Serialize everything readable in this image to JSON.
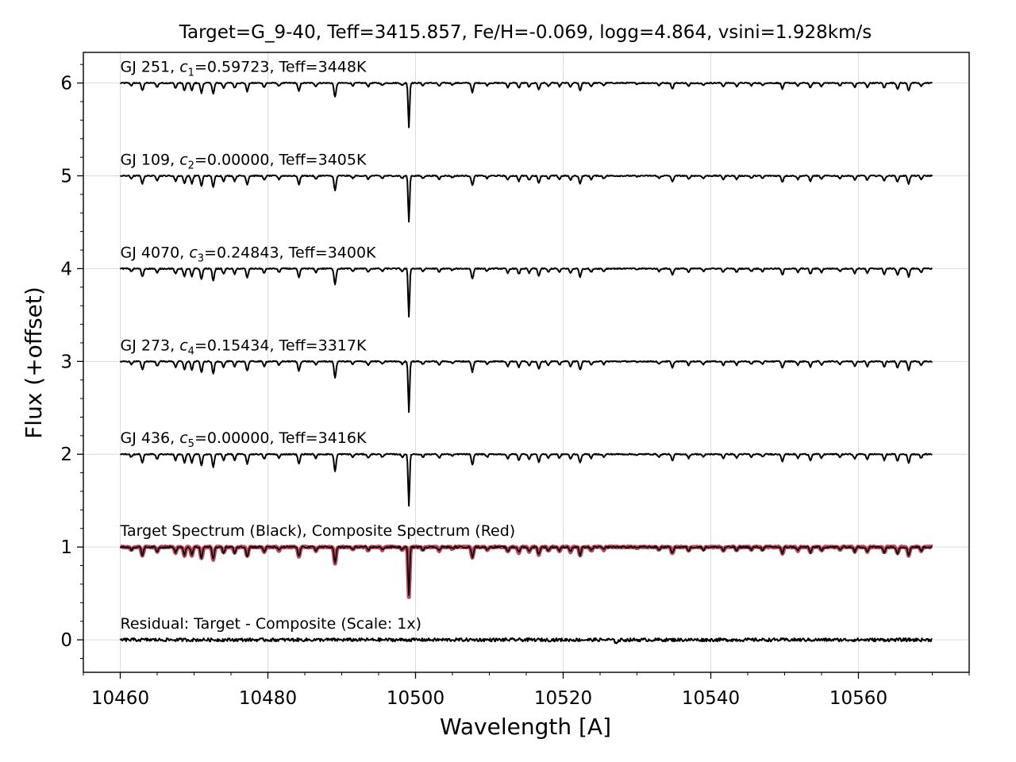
{
  "chart_data": {
    "type": "line",
    "title": "Target=G_9-40, Teff=3415.857, Fe/H=-0.069, logg=4.864, vsini=1.928km/s",
    "xlabel": "Wavelength [A]",
    "ylabel": "Flux (+offset)",
    "xlim": [
      10455,
      10575
    ],
    "ylim": [
      -0.35,
      6.33
    ],
    "xticks": [
      10460,
      10480,
      10500,
      10520,
      10540,
      10560
    ],
    "xtick_labels": [
      "10460",
      "10480",
      "10500",
      "10520",
      "10540",
      "10560"
    ],
    "yticks": [
      0,
      1,
      2,
      3,
      4,
      5,
      6
    ],
    "ytick_labels": [
      "0",
      "1",
      "2",
      "3",
      "4",
      "5",
      "6"
    ],
    "grid": true,
    "x_range_data": [
      10460,
      10570
    ],
    "absorption_lines": [
      {
        "w": 10461.5,
        "d": 0.03
      },
      {
        "w": 10463.0,
        "d": 0.09
      },
      {
        "w": 10465.0,
        "d": 0.05
      },
      {
        "w": 10467.5,
        "d": 0.06
      },
      {
        "w": 10468.7,
        "d": 0.09
      },
      {
        "w": 10469.7,
        "d": 0.09
      },
      {
        "w": 10471.0,
        "d": 0.12
      },
      {
        "w": 10472.6,
        "d": 0.13
      },
      {
        "w": 10474.0,
        "d": 0.06
      },
      {
        "w": 10475.5,
        "d": 0.06
      },
      {
        "w": 10477.2,
        "d": 0.1
      },
      {
        "w": 10479.5,
        "d": 0.05
      },
      {
        "w": 10481.5,
        "d": 0.04
      },
      {
        "w": 10484.2,
        "d": 0.1
      },
      {
        "w": 10486.5,
        "d": 0.04
      },
      {
        "w": 10489.1,
        "d": 0.17
      },
      {
        "w": 10491.5,
        "d": 0.03
      },
      {
        "w": 10493.6,
        "d": 0.04
      },
      {
        "w": 10495.5,
        "d": 0.03
      },
      {
        "w": 10498.2,
        "d": 0.03
      },
      {
        "w": 10499.1,
        "d": 0.53
      },
      {
        "w": 10501.0,
        "d": 0.03
      },
      {
        "w": 10503.2,
        "d": 0.04
      },
      {
        "w": 10505.0,
        "d": 0.02
      },
      {
        "w": 10507.7,
        "d": 0.11
      },
      {
        "w": 10509.7,
        "d": 0.03
      },
      {
        "w": 10512.5,
        "d": 0.05
      },
      {
        "w": 10514.0,
        "d": 0.06
      },
      {
        "w": 10515.4,
        "d": 0.05
      },
      {
        "w": 10516.7,
        "d": 0.08
      },
      {
        "w": 10518.0,
        "d": 0.04
      },
      {
        "w": 10519.5,
        "d": 0.04
      },
      {
        "w": 10521.0,
        "d": 0.05
      },
      {
        "w": 10522.3,
        "d": 0.09
      },
      {
        "w": 10523.8,
        "d": 0.04
      },
      {
        "w": 10525.5,
        "d": 0.03
      },
      {
        "w": 10530.0,
        "d": 0.01
      },
      {
        "w": 10533.0,
        "d": 0.03
      },
      {
        "w": 10534.8,
        "d": 0.07
      },
      {
        "w": 10537.0,
        "d": 0.04
      },
      {
        "w": 10539.0,
        "d": 0.03
      },
      {
        "w": 10541.7,
        "d": 0.04
      },
      {
        "w": 10543.5,
        "d": 0.04
      },
      {
        "w": 10545.5,
        "d": 0.03
      },
      {
        "w": 10547.0,
        "d": 0.03
      },
      {
        "w": 10549.7,
        "d": 0.07
      },
      {
        "w": 10551.8,
        "d": 0.04
      },
      {
        "w": 10553.5,
        "d": 0.06
      },
      {
        "w": 10555.0,
        "d": 0.04
      },
      {
        "w": 10557.5,
        "d": 0.03
      },
      {
        "w": 10559.5,
        "d": 0.05
      },
      {
        "w": 10561.2,
        "d": 0.05
      },
      {
        "w": 10563.5,
        "d": 0.06
      },
      {
        "w": 10565.3,
        "d": 0.07
      },
      {
        "w": 10566.8,
        "d": 0.09
      },
      {
        "w": 10568.5,
        "d": 0.04
      }
    ],
    "series": [
      {
        "name": "GJ 251",
        "offset": 5,
        "color": "#000000",
        "label": {
          "pre": "GJ 251, ",
          "sym": "c",
          "sub": "1",
          "post": "=0.59723, Teff=3448K"
        }
      },
      {
        "name": "GJ 109",
        "offset": 4,
        "color": "#000000",
        "label": {
          "pre": "GJ 109, ",
          "sym": "c",
          "sub": "2",
          "post": "=0.00000, Teff=3405K"
        }
      },
      {
        "name": "GJ 4070",
        "offset": 3,
        "color": "#000000",
        "label": {
          "pre": "GJ 4070, ",
          "sym": "c",
          "sub": "3",
          "post": "=0.24843, Teff=3400K"
        }
      },
      {
        "name": "GJ 273",
        "offset": 2,
        "color": "#000000",
        "label": {
          "pre": "GJ 273, ",
          "sym": "c",
          "sub": "4",
          "post": "=0.15434, Teff=3317K"
        }
      },
      {
        "name": "GJ 436",
        "offset": 1,
        "color": "#000000",
        "label": {
          "pre": "GJ 436, ",
          "sym": "c",
          "sub": "5",
          "post": "=0.00000, Teff=3416K"
        }
      },
      {
        "name": "Target Spectrum (Black)",
        "offset": 0,
        "color": "#000000",
        "label": {
          "pre": "Target Spectrum (Black), Composite Spectrum (Red)",
          "sym": "",
          "sub": "",
          "post": ""
        }
      },
      {
        "name": "Composite Spectrum (Red)",
        "offset": 0,
        "color": "#b0243c"
      },
      {
        "name": "Residual: Target - Composite (Scale: 1x)",
        "offset": -1,
        "color": "#000000",
        "label": {
          "pre": "Residual: Target - Composite (Scale: 1x)",
          "sym": "",
          "sub": "",
          "post": ""
        }
      }
    ]
  }
}
